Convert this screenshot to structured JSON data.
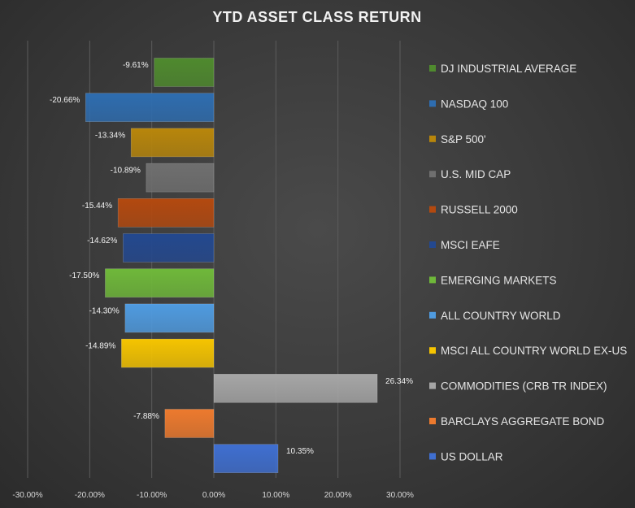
{
  "chart_data": {
    "type": "bar",
    "orientation": "horizontal",
    "title": "YTD ASSET CLASS RETURN",
    "xlabel": "",
    "ylabel": "",
    "xlim": [
      -30,
      30
    ],
    "x_ticks": [
      -30,
      -20,
      -10,
      0,
      10,
      20,
      30
    ],
    "x_tick_labels": [
      "-30.00%",
      "-20.00%",
      "-10.00%",
      "0.00%",
      "10.00%",
      "20.00%",
      "30.00%"
    ],
    "grid": true,
    "legend_position": "right",
    "categories": [
      "DJ INDUSTRIAL AVERAGE",
      "NASDAQ 100",
      "S&P 500'",
      "U.S. MID CAP",
      "RUSSELL 2000",
      "MSCI EAFE",
      "EMERGING MARKETS",
      "ALL COUNTRY WORLD",
      "MSCI ALL COUNTRY WORLD EX-US",
      "COMMODITIES (CRB TR INDEX)",
      "BARCLAYS AGGREGATE BOND",
      "US DOLLAR"
    ],
    "values": [
      -9.61,
      -20.66,
      -13.34,
      -10.89,
      -15.44,
      -14.62,
      -17.5,
      -14.3,
      -14.89,
      26.34,
      -7.88,
      10.35
    ],
    "value_labels": [
      "-9.61%",
      "-20.66%",
      "-13.34%",
      "-10.89%",
      "-15.44%",
      "-14.62%",
      "-17.50%",
      "-14.30%",
      "-14.89%",
      "26.34%",
      "-7.88%",
      "10.35%"
    ],
    "colors": [
      "#4f8a2e",
      "#2e6db0",
      "#b8860b",
      "#6f6f6f",
      "#b3490f",
      "#23488f",
      "#6fb83a",
      "#4f9be0",
      "#f5c400",
      "#a6a6a6",
      "#ed7a2e",
      "#3f6fd1"
    ]
  }
}
